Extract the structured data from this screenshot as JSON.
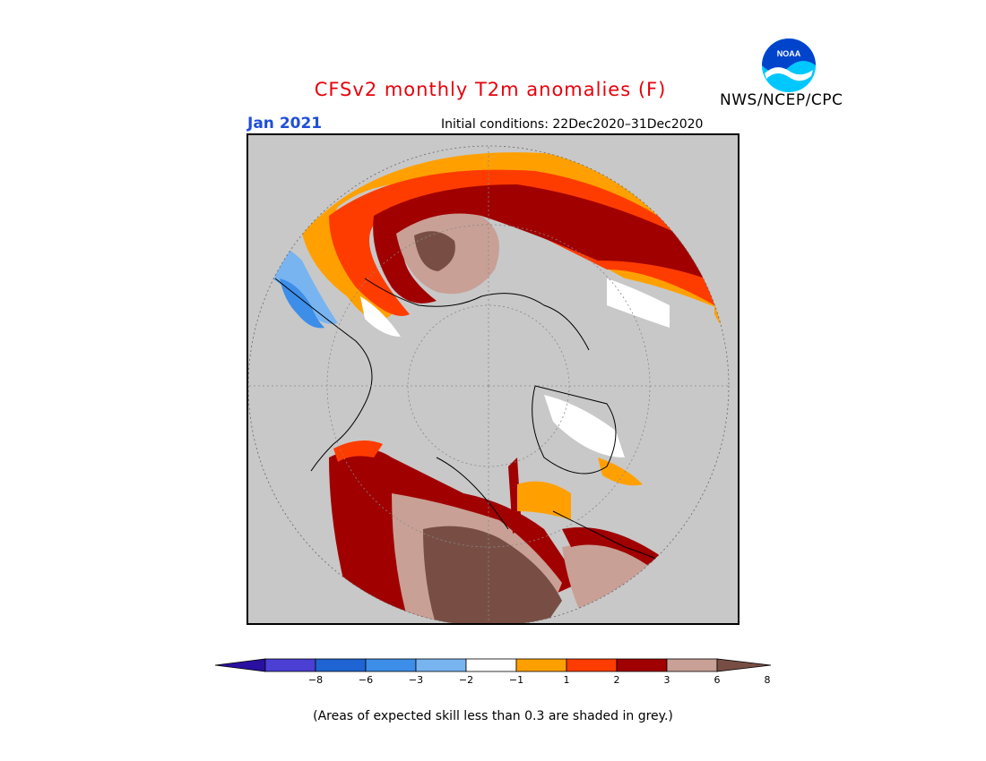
{
  "header": {
    "title": "CFSv2 monthly T2m anomalies (F)",
    "month": "Jan 2021",
    "initial_conditions": "Initial conditions: 22Dec2020–31Dec2020",
    "organization": "NWS/NCEP/CPC",
    "logo_text": "NOAA",
    "logo_icon": "noaa-logo-icon"
  },
  "legend": {
    "ticks": [
      "−8",
      "−6",
      "−3",
      "−2",
      "−1",
      "1",
      "2",
      "3",
      "6",
      "8"
    ],
    "colors": [
      "#2a10a0",
      "#4b3fd4",
      "#1e64d2",
      "#3c8ee8",
      "#78b4f0",
      "#ffffff",
      "#ffa000",
      "#ff3c00",
      "#a00000",
      "#c8a096",
      "#784e44"
    ],
    "note": "(Areas of expected skill less than 0.3 are shaded in grey.)"
  },
  "map": {
    "projection": "north-polar-stereographic",
    "background_color": "#c8c8c8",
    "grey_meaning": "expected skill less than 0.3"
  }
}
